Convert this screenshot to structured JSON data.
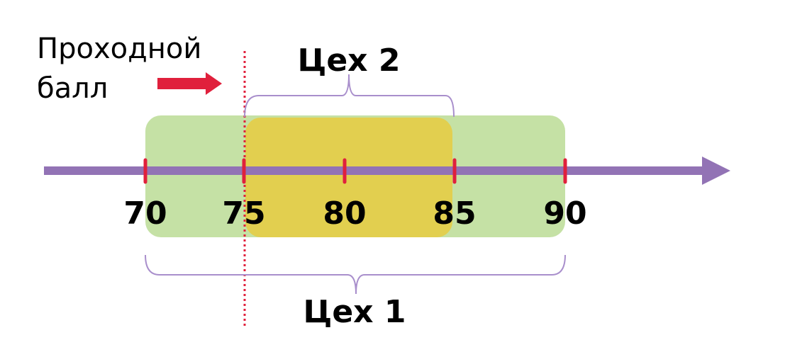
{
  "passing_score_label": [
    "Проходной",
    "балл"
  ],
  "axis_ticks": [
    "70",
    "75",
    "80",
    "85",
    "90"
  ],
  "passing_score_value": "75",
  "ranges": [
    {
      "label": "Цех 1",
      "from": 70,
      "to": 90,
      "color": "#c5e1a5"
    },
    {
      "label": "Цех 2",
      "from": 75,
      "to": 85,
      "color": "#e2cf4f"
    }
  ],
  "colors": {
    "axis": "#9273b5",
    "ticks": "#e0203c",
    "passing_line": "#e0203c",
    "brace": "#a98fcc"
  }
}
